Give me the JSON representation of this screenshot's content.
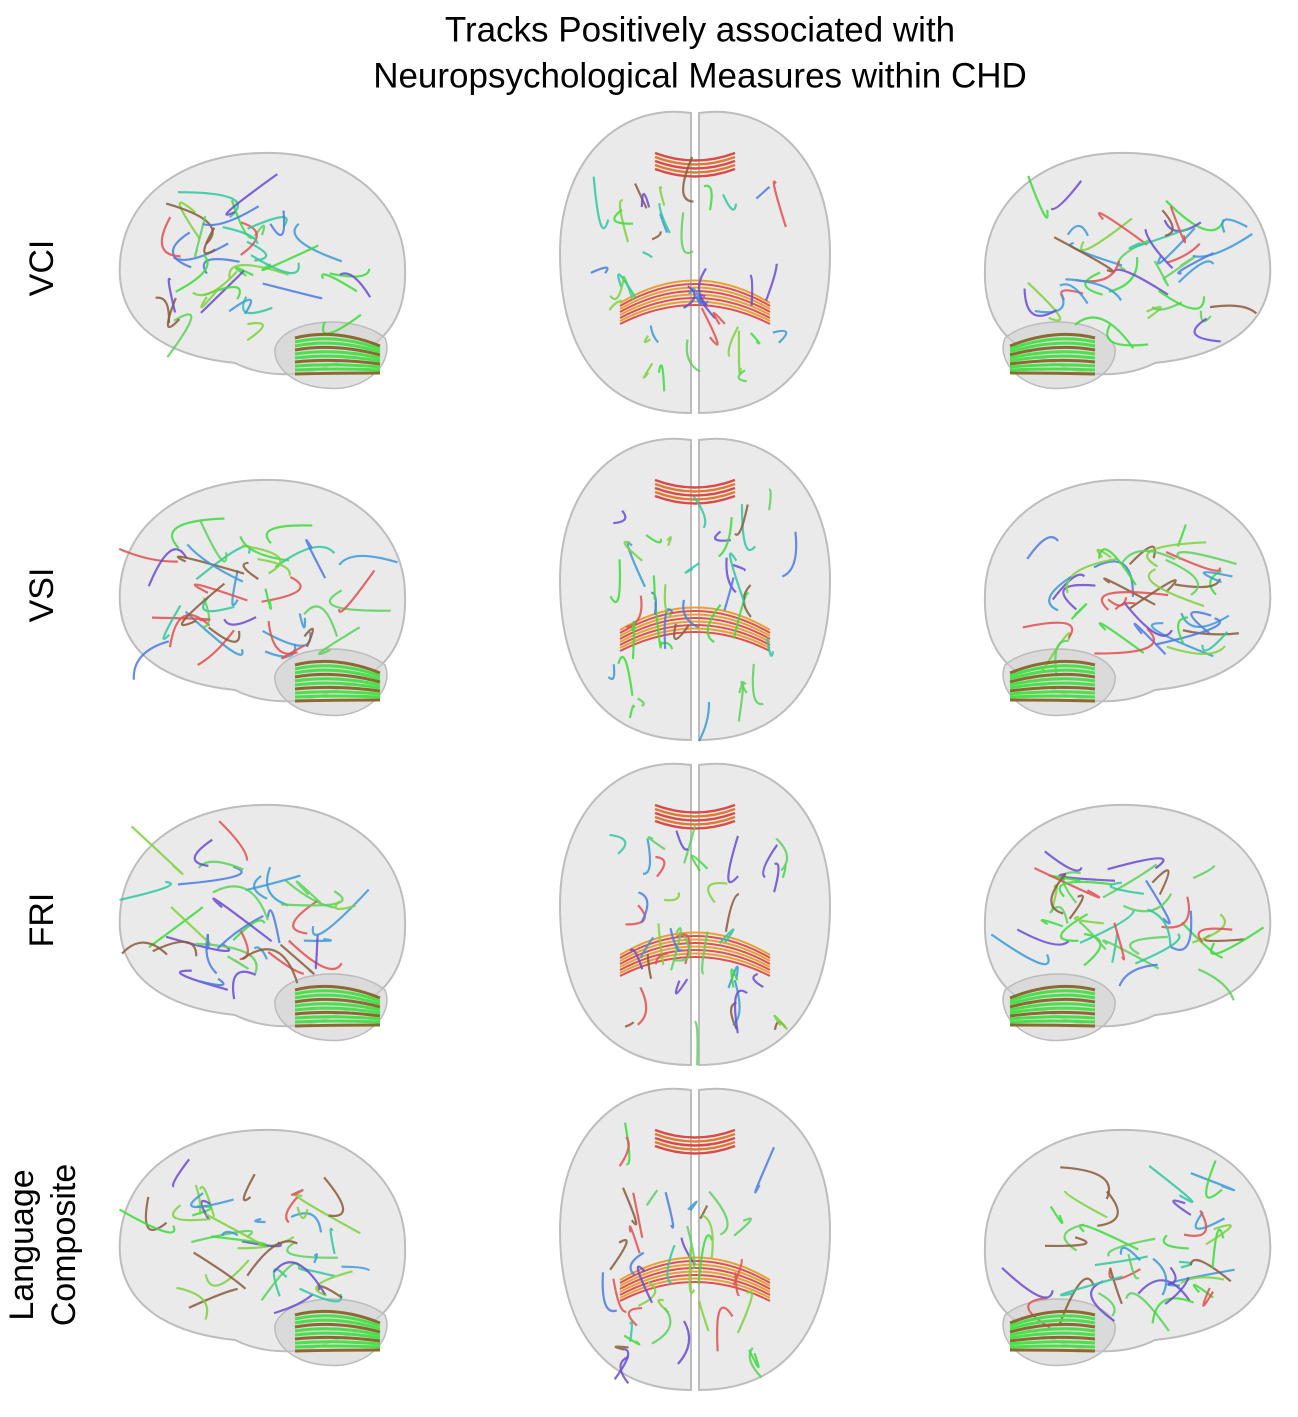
{
  "title": {
    "lines": [
      "Tracks Positively associated with",
      "Neuropsychological Measures within CHD"
    ]
  },
  "rows": [
    {
      "label_lines": [
        "VCI"
      ]
    },
    {
      "label_lines": [
        "VSI"
      ]
    },
    {
      "label_lines": [
        "FRI"
      ]
    },
    {
      "label_lines": [
        "Language",
        "Composite"
      ]
    }
  ]
}
